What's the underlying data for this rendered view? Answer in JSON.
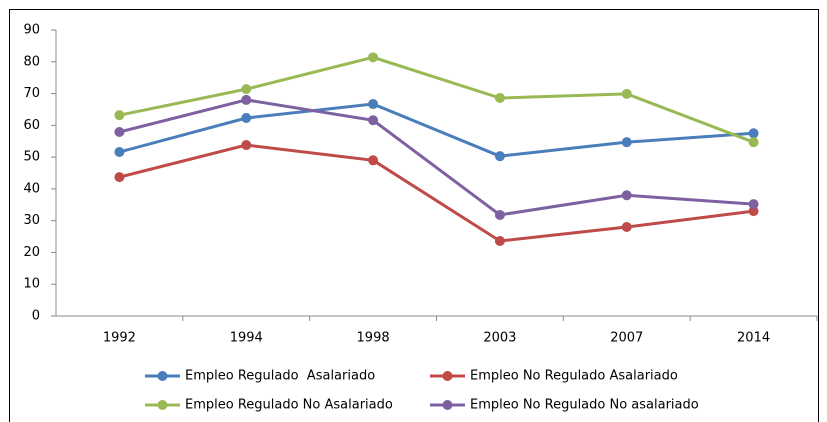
{
  "chart_data": {
    "type": "line",
    "categories": [
      "1992",
      "1994",
      "1998",
      "2003",
      "2007",
      "2014"
    ],
    "series": [
      {
        "name": "Empleo Regulado  Asalariado",
        "color": "#4a7ebb",
        "values": [
          51.6,
          62.3,
          66.7,
          50.3,
          54.7,
          57.5
        ]
      },
      {
        "name": "Empleo No Regulado Asalariado",
        "color": "#be4b48",
        "values": [
          43.7,
          53.8,
          49,
          23.6,
          28,
          33
        ]
      },
      {
        "name": "Empleo Regulado No Asalariado",
        "color": "#98b954",
        "values": [
          63.2,
          71.4,
          81.4,
          68.6,
          69.9,
          54.7
        ]
      },
      {
        "name": "Empleo No Regulado No asalariado",
        "color": "#7d60a0",
        "values": [
          57.9,
          68,
          61.6,
          31.8,
          38,
          35.2
        ]
      }
    ],
    "ylim": [
      0,
      90
    ],
    "yticks": [
      0,
      10,
      20,
      30,
      40,
      50,
      60,
      70,
      80,
      90
    ],
    "grid": false,
    "legend": "bottom"
  }
}
